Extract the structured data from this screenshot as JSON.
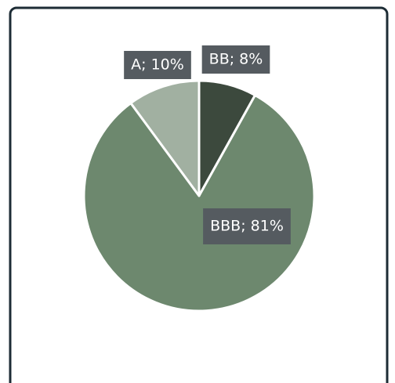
{
  "chart_data": {
    "type": "pie",
    "values": [
      8,
      81,
      10
    ],
    "value_labels": [
      "BB; 8%",
      "BBB; 81%",
      "A; 10%"
    ],
    "colors": [
      "#3c493d",
      "#6d886e",
      "#a1b0a1"
    ]
  }
}
